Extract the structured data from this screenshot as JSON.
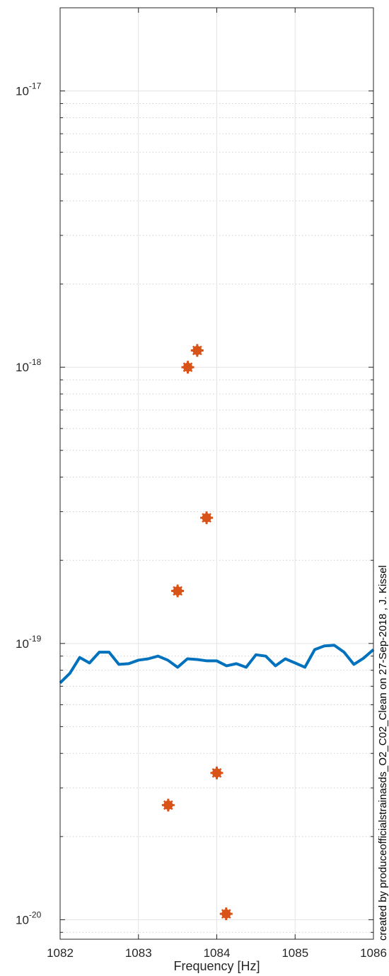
{
  "chart_data": {
    "type": "line",
    "title": "",
    "xlabel": "Frequency [Hz]",
    "ylabel": "",
    "xlim": [
      1082,
      1086
    ],
    "ylim": [
      8.5e-21,
      2e-17
    ],
    "y_scale": "log",
    "grid": true,
    "x_ticks": [
      1082,
      1083,
      1084,
      1085,
      1086
    ],
    "x_tick_labels": [
      "1082",
      "1083",
      "1084",
      "1085",
      "1086"
    ],
    "y_major_ticks": [
      {
        "value": 1e-17,
        "base": "10",
        "exp": "-17"
      },
      {
        "value": 1e-18,
        "base": "10",
        "exp": "-18"
      },
      {
        "value": 1e-19,
        "base": "10",
        "exp": "-19"
      },
      {
        "value": 1e-20,
        "base": "10",
        "exp": "-20"
      }
    ],
    "series": [
      {
        "kind": "line",
        "color": "#0072BD",
        "x": [
          1082.0,
          1082.125,
          1082.25,
          1082.375,
          1082.5,
          1082.625,
          1082.75,
          1082.875,
          1083.0,
          1083.125,
          1083.25,
          1083.375,
          1083.5,
          1083.625,
          1083.75,
          1083.875,
          1084.0,
          1084.125,
          1084.25,
          1084.375,
          1084.5,
          1084.625,
          1084.75,
          1084.875,
          1085.0,
          1085.125,
          1085.25,
          1085.375,
          1085.5,
          1085.625,
          1085.75,
          1085.875,
          1086.0
        ],
        "y": [
          7.2e-20,
          7.8e-20,
          8.9e-20,
          8.5e-20,
          9.3e-20,
          9.3e-20,
          8.4e-20,
          8.45e-20,
          8.7e-20,
          8.8e-20,
          9e-20,
          8.7e-20,
          8.2e-20,
          8.8e-20,
          8.75e-20,
          8.65e-20,
          8.65e-20,
          8.3e-20,
          8.45e-20,
          8.2e-20,
          9.1e-20,
          9e-20,
          8.3e-20,
          8.8e-20,
          8.5e-20,
          8.2e-20,
          9.5e-20,
          9.8e-20,
          9.85e-20,
          9.3e-20,
          8.4e-20,
          8.85e-20,
          9.5e-20
        ]
      },
      {
        "kind": "scatter",
        "color": "#D95319",
        "x": [
          1083.38,
          1083.5,
          1083.63,
          1083.75,
          1083.87,
          1084.0,
          1084.12
        ],
        "y": [
          2.6e-20,
          1.55e-19,
          1e-18,
          1.15e-18,
          2.85e-19,
          3.4e-20,
          1.05e-20
        ]
      }
    ]
  },
  "credit_text": "created by produceofficialstrainasds_O2_C02_Clean on 27-Sep-2018 , J. Kissel"
}
